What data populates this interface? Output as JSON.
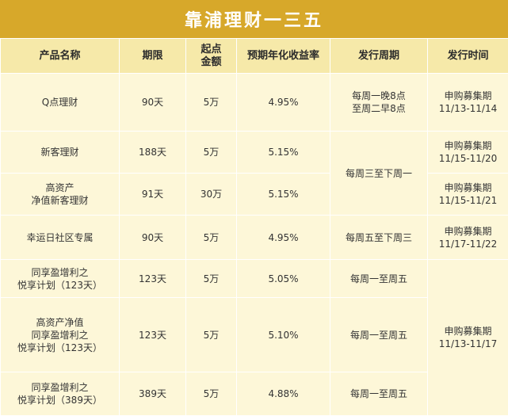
{
  "title": "靠浦理财一三五",
  "columns": [
    "产品名称",
    "期限",
    "起点\n金额",
    "预期年化收益率",
    "发行周期",
    "发行时间"
  ],
  "rows": [
    {
      "name": "Q点理财",
      "term": "90天",
      "min_amount": "5万",
      "rate": "4.95%"
    },
    {
      "name": "新客理财",
      "term": "188天",
      "min_amount": "5万",
      "rate": "5.15%"
    },
    {
      "name": "高资产\n净值新客理财",
      "term": "91天",
      "min_amount": "30万",
      "rate": "5.15%"
    },
    {
      "name": "幸运日社区专属",
      "term": "90天",
      "min_amount": "5万",
      "rate": "4.95%"
    },
    {
      "name": "同享盈增利之\n悦享计划（123天）",
      "term": "123天",
      "min_amount": "5万",
      "rate": "5.05%"
    },
    {
      "name": "高资产净值\n同享盈增利之\n悦享计划（123天）",
      "term": "123天",
      "min_amount": "5万",
      "rate": "5.10%"
    },
    {
      "name": "同享盈增利之\n悦享计划（389天）",
      "term": "389天",
      "min_amount": "5万",
      "rate": "4.88%"
    }
  ],
  "cycles": [
    "每周一晚8点\n至周二早8点",
    "每周三至下周一",
    "每周五至下周三",
    "每周一至周五",
    "每周一至周五",
    "每周一至周五"
  ],
  "times": [
    "申购募集期\n11/13-11/14",
    "申购募集期\n11/15-11/20",
    "申购募集期\n11/15-11/21",
    "申购募集期\n11/17-11/22",
    "申购募集期\n11/13-11/17"
  ]
}
